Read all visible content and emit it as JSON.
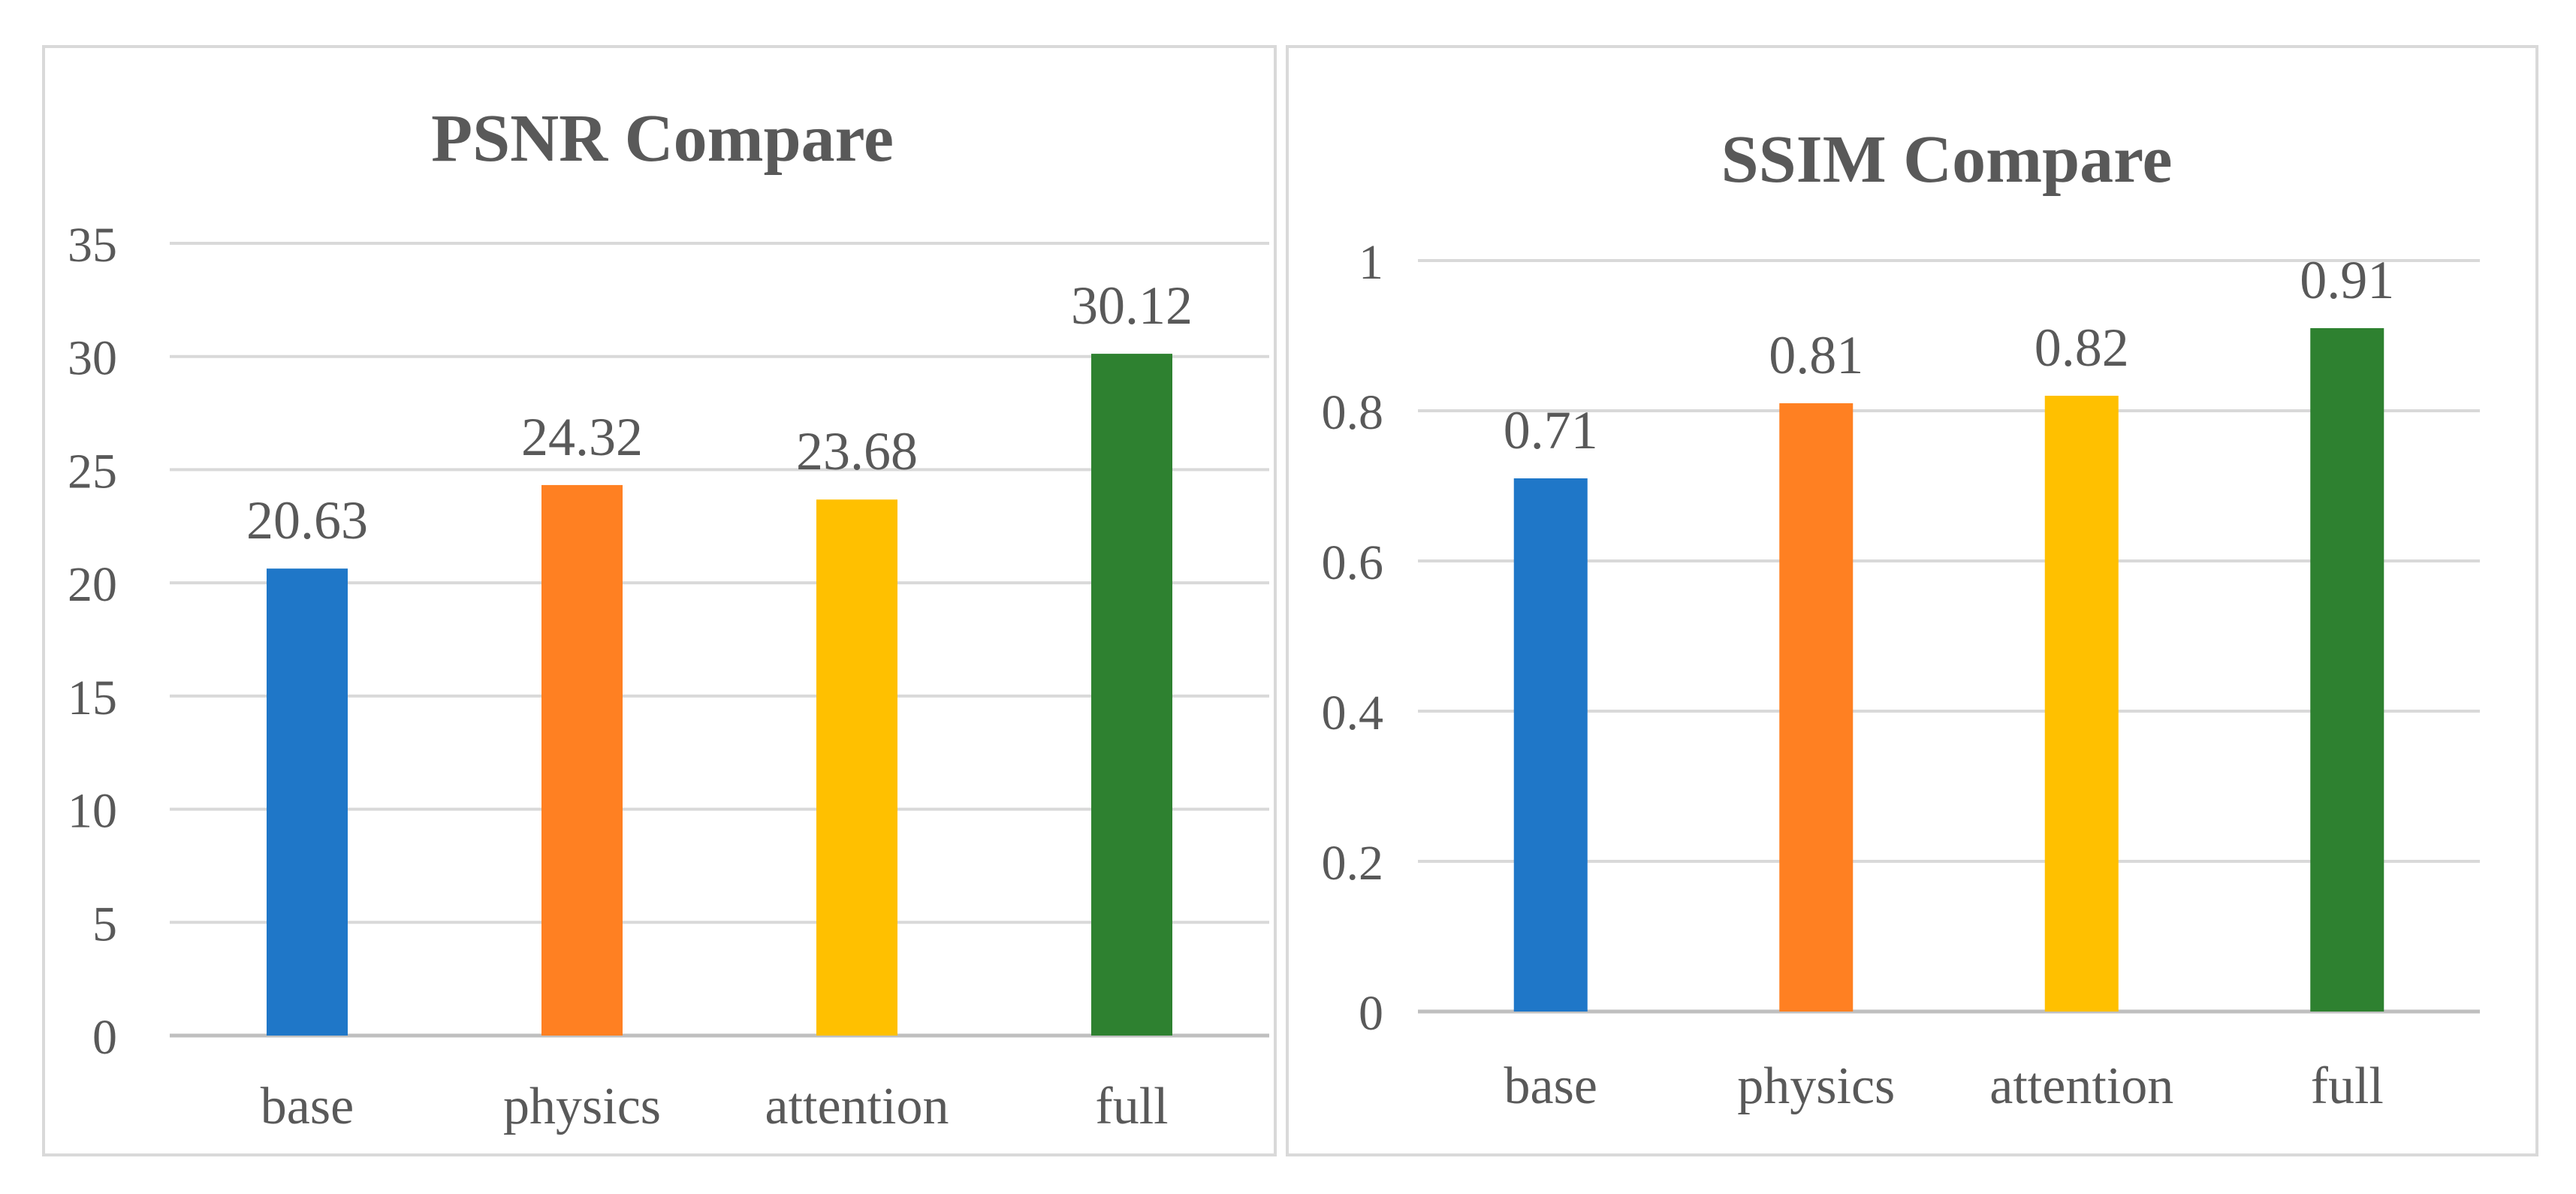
{
  "chart_data": [
    {
      "type": "bar",
      "title": "PSNR Compare",
      "categories": [
        "base",
        "physics",
        "attention",
        "full"
      ],
      "values": [
        20.63,
        24.32,
        23.68,
        30.12
      ],
      "value_labels": [
        "20.63",
        "24.32",
        "23.68",
        "30.12"
      ],
      "colors": [
        "#1F77C8",
        "#FF8022",
        "#FFC000",
        "#2E8130"
      ],
      "ylim": [
        0,
        35
      ],
      "yticks": [
        0,
        5,
        10,
        15,
        20,
        25,
        30,
        35
      ],
      "ytick_labels": [
        "0",
        "5",
        "10",
        "15",
        "20",
        "25",
        "30",
        "35"
      ],
      "xlabel": "",
      "ylabel": "",
      "grid": true,
      "legend": "none"
    },
    {
      "type": "bar",
      "title": "SSIM Compare",
      "categories": [
        "base",
        "physics",
        "attention",
        "full"
      ],
      "values": [
        0.71,
        0.81,
        0.82,
        0.91
      ],
      "value_labels": [
        "0.71",
        "0.81",
        "0.82",
        "0.91"
      ],
      "colors": [
        "#1F77C8",
        "#FF8022",
        "#FFC000",
        "#2E8130"
      ],
      "ylim": [
        0,
        1
      ],
      "yticks": [
        0,
        0.2,
        0.4,
        0.6,
        0.8,
        1
      ],
      "ytick_labels": [
        "0",
        "0.2",
        "0.4",
        "0.6",
        "0.8",
        "1"
      ],
      "xlabel": "",
      "ylabel": "",
      "grid": true,
      "legend": "none"
    }
  ],
  "colors": {
    "gridline": "#d9d9d9",
    "axis": "#bfbfbf",
    "text": "#595959"
  }
}
